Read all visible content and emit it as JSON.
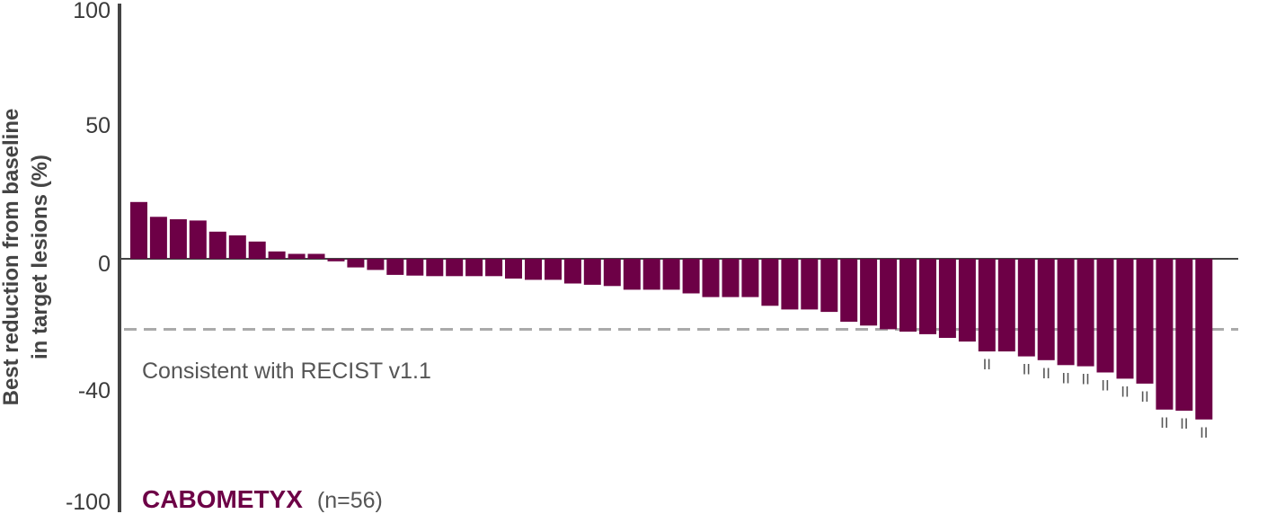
{
  "chart_data": {
    "type": "bar",
    "ylabel_line1": "Best reduction from baseline",
    "ylabel_line2": "in target lesions (%)",
    "yticks": [
      "100",
      "50",
      "0",
      "-40",
      "-100"
    ],
    "ytick_values": [
      100,
      50,
      0,
      -40,
      -100
    ],
    "threshold": {
      "value": -30,
      "label": "Consistent with RECIST v1.1"
    },
    "series": [
      {
        "name": "CABOMETYX",
        "n_label": "(n=56)",
        "values": [
          23,
          17,
          16,
          15.5,
          11,
          9.5,
          7,
          3,
          2,
          2,
          -1,
          -3.5,
          -4.5,
          -6.5,
          -6.8,
          -7,
          -7,
          -7,
          -7,
          -8,
          -8.5,
          -8.5,
          -10,
          -10.5,
          -11,
          -12.5,
          -12.5,
          -12.5,
          -14,
          -15.5,
          -15.5,
          -15.5,
          -19,
          -20.5,
          -20.5,
          -21.5,
          -25.5,
          -27,
          -28.5,
          -29.5,
          -30.5,
          -32,
          -33.5,
          -37.5,
          -37.5,
          -39.5,
          -41,
          -43,
          -43.5,
          -46,
          -48.5,
          -50.5,
          -61,
          -61.5,
          -65
        ],
        "marker_symbol": "II",
        "marked_bar_indexes": [
          43,
          45,
          46,
          47,
          48,
          49,
          50,
          51,
          52,
          53,
          54
        ]
      }
    ],
    "colors": {
      "bar": "#6d0046",
      "axis": "#444444",
      "threshold": "#aaaaaa",
      "brand": "#6d0046"
    },
    "grid": false
  }
}
